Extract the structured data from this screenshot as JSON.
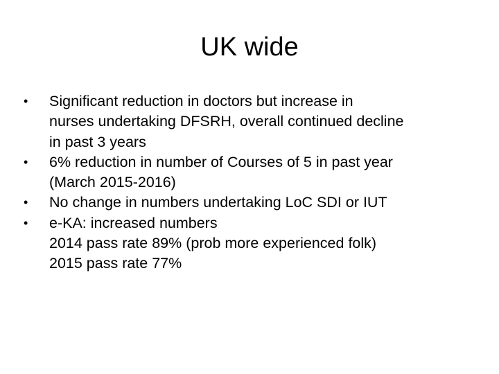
{
  "slide": {
    "title": "UK wide",
    "bullets": [
      {
        "marker": "•",
        "lines": [
          "Significant reduction in doctors but increase in",
          "nurses undertaking DFSRH, overall continued decline",
          "in past 3 years"
        ]
      },
      {
        "marker": "•",
        "lines": [
          "6% reduction in number of Courses of 5 in past year",
          "(March 2015-2016)"
        ]
      },
      {
        "marker": "•",
        "lines": [
          "No change in numbers undertaking LoC SDI or IUT"
        ]
      },
      {
        "marker": "•",
        "lines": [
          "e-KA: increased numbers",
          "2014 pass rate 89% (prob more experienced folk)",
          "2015 pass rate 77%"
        ]
      }
    ]
  }
}
